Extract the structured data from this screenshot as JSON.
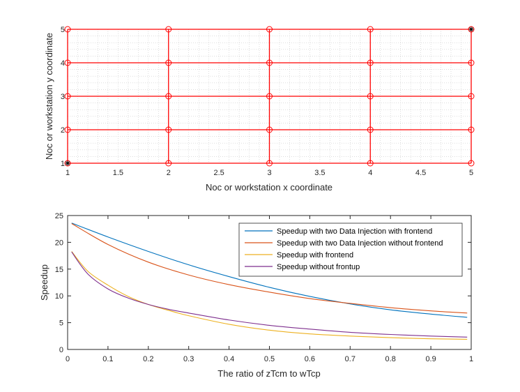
{
  "chart_data": [
    {
      "type": "scatter",
      "subtype": "mesh-grid",
      "xlabel": "Noc or workstation x coordinate",
      "ylabel": "Noc or workstation y coordinate",
      "xlim": [
        1,
        5
      ],
      "ylim": [
        1,
        5
      ],
      "xticks": [
        "1",
        "1.5",
        "2",
        "2.5",
        "3",
        "3.5",
        "4",
        "4.5",
        "5"
      ],
      "yticks": [
        "1",
        "2",
        "3",
        "4",
        "5"
      ],
      "grid": "minor-dotted",
      "nodes_x": [
        1,
        2,
        3,
        4,
        5
      ],
      "nodes_y": [
        1,
        2,
        3,
        4,
        5
      ],
      "special_nodes": [
        [
          1,
          1
        ],
        [
          5,
          5
        ]
      ],
      "colors": {
        "mesh": "#ff0000",
        "special": "#000000"
      }
    },
    {
      "type": "line",
      "xlabel": "The ratio of zTcm to wTcp",
      "ylabel": "Speedup",
      "xlim": [
        0,
        1
      ],
      "ylim": [
        0,
        25
      ],
      "xticks": [
        "0",
        "0.1",
        "0.2",
        "0.3",
        "0.4",
        "0.5",
        "0.6",
        "0.7",
        "0.8",
        "0.9",
        "1"
      ],
      "yticks": [
        "0",
        "5",
        "10",
        "15",
        "20",
        "25"
      ],
      "legend_position": "top-right",
      "series": [
        {
          "name": "Speedup with two Data Injection with frontend",
          "color": "#0072bd",
          "x": [
            0.01,
            0.1,
            0.2,
            0.3,
            0.4,
            0.5,
            0.6,
            0.7,
            0.8,
            0.9,
            0.99
          ],
          "y": [
            23.6,
            21.0,
            18.3,
            15.8,
            13.6,
            11.6,
            9.9,
            8.5,
            7.4,
            6.6,
            6.0
          ]
        },
        {
          "name": "Speedup with two Data Injection without frontend",
          "color": "#d95319",
          "x": [
            0.01,
            0.1,
            0.2,
            0.3,
            0.4,
            0.5,
            0.6,
            0.7,
            0.8,
            0.9,
            0.99
          ],
          "y": [
            23.5,
            19.6,
            16.3,
            13.9,
            12.1,
            10.7,
            9.5,
            8.6,
            7.8,
            7.2,
            6.8
          ]
        },
        {
          "name": "Speedup with frontend",
          "color": "#edb120",
          "x": [
            0.01,
            0.05,
            0.1,
            0.15,
            0.2,
            0.25,
            0.3,
            0.4,
            0.5,
            0.6,
            0.7,
            0.8,
            0.9,
            0.99
          ],
          "y": [
            18.3,
            14.6,
            12.0,
            9.9,
            8.4,
            7.3,
            6.3,
            4.7,
            3.6,
            2.9,
            2.5,
            2.2,
            2.0,
            1.9
          ]
        },
        {
          "name": "Speedup without frontup",
          "color": "#7e2f8e",
          "x": [
            0.01,
            0.05,
            0.1,
            0.15,
            0.2,
            0.25,
            0.3,
            0.4,
            0.5,
            0.6,
            0.7,
            0.8,
            0.9,
            0.99
          ],
          "y": [
            18.2,
            14.1,
            11.3,
            9.6,
            8.4,
            7.5,
            6.8,
            5.5,
            4.5,
            3.8,
            3.2,
            2.8,
            2.5,
            2.3
          ]
        }
      ]
    }
  ]
}
